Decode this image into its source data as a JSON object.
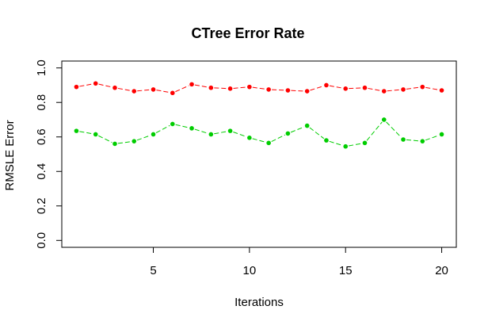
{
  "chart_data": {
    "type": "line",
    "title": "CTree Error Rate",
    "xlabel": "Iterations",
    "ylabel": "RMSLE Error",
    "x": [
      1,
      2,
      3,
      4,
      5,
      6,
      7,
      8,
      9,
      10,
      11,
      12,
      13,
      14,
      15,
      16,
      17,
      18,
      19,
      20
    ],
    "x_ticks": [
      5,
      10,
      15,
      20
    ],
    "y_ticks": [
      0.0,
      0.2,
      0.4,
      0.6,
      0.8,
      1.0
    ],
    "xlim": [
      0.24,
      20.76
    ],
    "ylim": [
      -0.04,
      1.04
    ],
    "grid": false,
    "series": [
      {
        "color": "#ff0000",
        "line_style": "dashed",
        "marker": "circle",
        "values": [
          0.89,
          0.91,
          0.885,
          0.865,
          0.875,
          0.855,
          0.905,
          0.885,
          0.88,
          0.89,
          0.875,
          0.87,
          0.865,
          0.9,
          0.88,
          0.885,
          0.865,
          0.875,
          0.89,
          0.87
        ]
      },
      {
        "color": "#00cd00",
        "line_style": "dashed",
        "marker": "circle",
        "values": [
          0.635,
          0.615,
          0.56,
          0.575,
          0.615,
          0.675,
          0.65,
          0.615,
          0.635,
          0.595,
          0.565,
          0.62,
          0.665,
          0.58,
          0.545,
          0.565,
          0.7,
          0.585,
          0.575,
          0.615
        ]
      }
    ]
  }
}
